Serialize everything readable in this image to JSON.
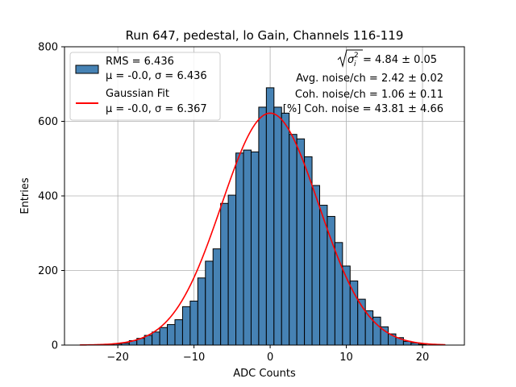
{
  "chart_data": {
    "type": "bar",
    "title": "Run 647, pedestal, lo Gain, Channels 116-119",
    "xlabel": "ADC Counts",
    "ylabel": "Entries",
    "xlim": [
      -27,
      25.5
    ],
    "ylim": [
      0,
      800
    ],
    "xticks": [
      -20,
      -10,
      0,
      10,
      20
    ],
    "yticks": [
      0,
      200,
      400,
      600,
      800
    ],
    "xtick_labels": [
      "−20",
      "−10",
      "0",
      "10",
      "20"
    ],
    "ytick_labels": [
      "0",
      "200",
      "400",
      "600",
      "800"
    ],
    "grid": true,
    "legend_position": "top-left",
    "colors": {
      "bars": "#4682b4",
      "bar_edge": "#000000",
      "fit": "#ff0000"
    },
    "histogram": {
      "bin_width": 1,
      "x": [
        -21,
        -20,
        -19,
        -18,
        -17,
        -16,
        -15,
        -14,
        -13,
        -12,
        -11,
        -10,
        -9,
        -8,
        -7,
        -6,
        -5,
        -4,
        -3,
        -2,
        -1,
        0,
        1,
        2,
        3,
        4,
        5,
        6,
        7,
        8,
        9,
        10,
        11,
        12,
        13,
        14,
        15,
        16,
        17,
        18,
        19,
        20
      ],
      "values": [
        2,
        3,
        5,
        12,
        18,
        26,
        35,
        47,
        55,
        68,
        103,
        118,
        180,
        225,
        258,
        380,
        402,
        515,
        523,
        518,
        638,
        690,
        638,
        622,
        565,
        553,
        505,
        428,
        375,
        345,
        275,
        212,
        172,
        123,
        92,
        75,
        49,
        30,
        20,
        10,
        6,
        2
      ]
    },
    "gaussian_fit": {
      "mean": 0.0,
      "sigma": 6.367,
      "amplitude": 622,
      "x_range": [
        -25,
        23
      ]
    },
    "legend": [
      {
        "label": "RMS = 6.436",
        "label2": "μ = -0.0, σ = 6.436",
        "kind": "patch"
      },
      {
        "label": "Gaussian Fit",
        "label2": "μ = -0.0, σ = 6.367",
        "kind": "line"
      }
    ],
    "annotations": {
      "sqrt_sigma_value": " = 4.84 ± 0.05",
      "avg_noise": "Avg. noise/ch = 2.42 ± 0.02",
      "coh_noise": "Coh. noise/ch = 1.06 ± 0.11",
      "pct_coh_noise": "[%] Coh. noise = 43.81 ± 4.66"
    }
  }
}
